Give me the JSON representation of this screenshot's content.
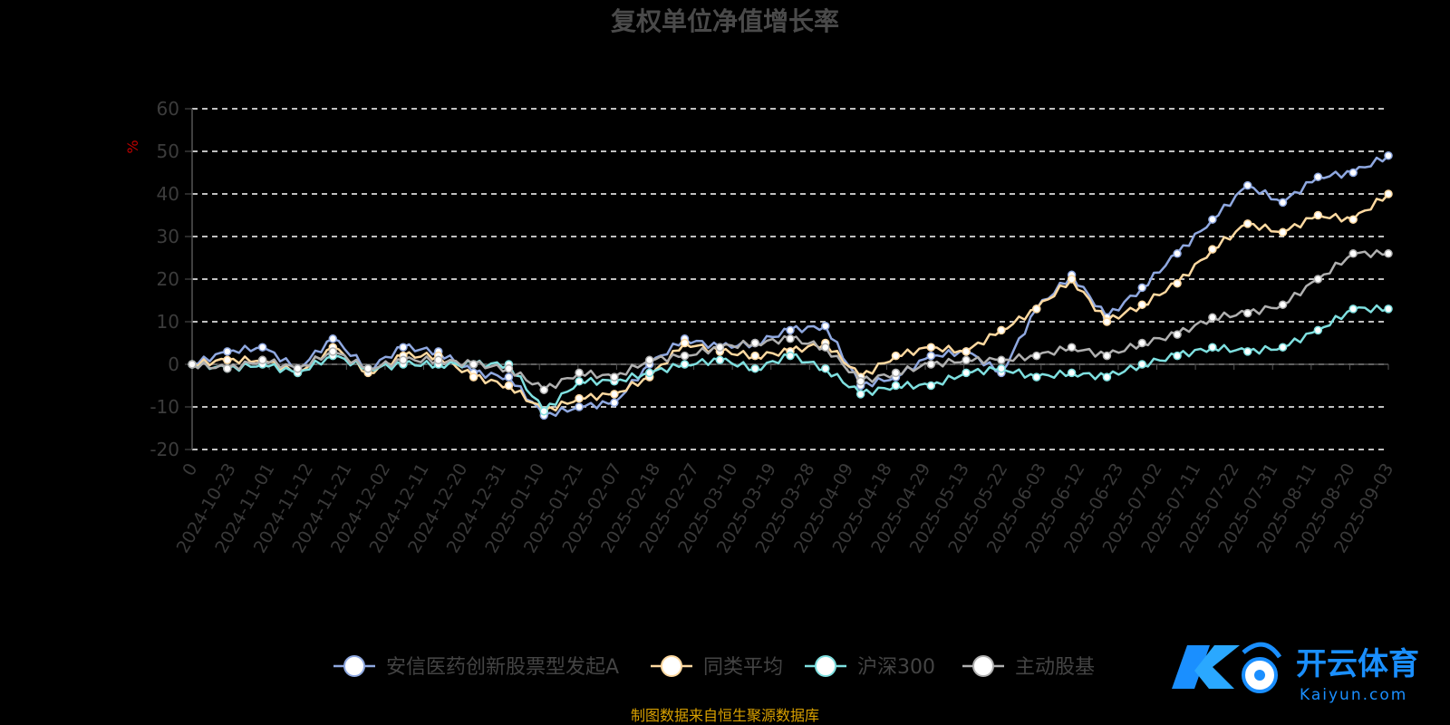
{
  "chart_data": {
    "type": "line",
    "title": "复权单位净值增长率",
    "ylabel": "%",
    "ylim": [
      -20,
      60
    ],
    "yticks": [
      -20,
      -10,
      0,
      10,
      20,
      30,
      40,
      50,
      60
    ],
    "grid": true,
    "legend_position": "bottom",
    "x_tick_labels": [
      "0",
      "2024-10-23",
      "2024-11-01",
      "2024-11-12",
      "2024-11-21",
      "2024-12-02",
      "2024-12-11",
      "2024-12-20",
      "2024-12-31",
      "2025-01-10",
      "2025-01-21",
      "2025-02-07",
      "2025-02-18",
      "2025-02-27",
      "2025-03-10",
      "2025-03-19",
      "2025-03-28",
      "2025-04-09",
      "2025-04-18",
      "2025-04-29",
      "2025-05-13",
      "2025-05-22",
      "2025-06-03",
      "2025-06-12",
      "2025-06-23",
      "2025-07-02",
      "2025-07-11",
      "2025-07-22",
      "2025-07-31",
      "2025-08-11",
      "2025-08-20",
      "2025-09-03"
    ],
    "series": [
      {
        "name": "安信医药创新股票型发起A",
        "color": "#8fa8e0",
        "values": [
          0,
          3,
          4,
          -1,
          6,
          -1,
          4,
          3,
          -2,
          -3,
          -12,
          -10,
          -9,
          0,
          6,
          4,
          5,
          8,
          9,
          -5,
          -3,
          2,
          3,
          -2,
          13,
          21,
          11,
          18,
          26,
          34,
          42,
          38,
          44,
          45,
          49
        ]
      },
      {
        "name": "同类平均",
        "color": "#ffd9a0",
        "values": [
          0,
          1,
          1,
          -2,
          4,
          -2,
          2,
          2,
          -3,
          -5,
          -11,
          -8,
          -7,
          -3,
          5,
          3,
          2,
          3,
          5,
          -3,
          2,
          4,
          3,
          8,
          13,
          20,
          10,
          14,
          19,
          27,
          33,
          31,
          35,
          34,
          40
        ]
      },
      {
        "name": "沪深300",
        "color": "#7fe0e0",
        "values": [
          0,
          -1,
          0,
          -2,
          2,
          -1,
          0,
          0,
          0,
          0,
          -11,
          -4,
          -4,
          -2,
          0,
          1,
          -1,
          2,
          -1,
          -7,
          -5,
          -5,
          -2,
          -1,
          -3,
          -2,
          -3,
          0,
          2,
          4,
          3,
          4,
          8,
          13,
          13
        ]
      },
      {
        "name": "主动股基",
        "color": "#b0b0b0",
        "values": [
          0,
          -1,
          1,
          -1,
          3,
          -1,
          1,
          1,
          0,
          -1,
          -6,
          -2,
          -3,
          1,
          2,
          4,
          5,
          6,
          4,
          -4,
          -2,
          0,
          1,
          1,
          2,
          4,
          2,
          5,
          7,
          11,
          12,
          14,
          20,
          26,
          26
        ]
      }
    ],
    "markers": {
      "安信医药创新股票型发起A": [
        0,
        5,
        10,
        15,
        21,
        26,
        31,
        36,
        41,
        46,
        51,
        56,
        62,
        67,
        72,
        77,
        82,
        87,
        92,
        97,
        102,
        107,
        112,
        117,
        122,
        127,
        132,
        137,
        142,
        147,
        152,
        157,
        162,
        167,
        171,
        172,
        176,
        181,
        186,
        191,
        196,
        201,
        206,
        211,
        216,
        221,
        226,
        231,
        236,
        241,
        246,
        251,
        256,
        261,
        266,
        271,
        276,
        281,
        286
      ],
      "note": ""
    }
  },
  "legend": {
    "items": [
      {
        "label": "安信医药创新股票型发起A"
      },
      {
        "label": "同类平均"
      },
      {
        "label": "沪深300"
      },
      {
        "label": "主动股基"
      }
    ]
  },
  "footer": {
    "source": "制图数据来自恒生聚源数据库"
  },
  "watermark": {
    "cn": "开云体育",
    "en": "Kaiyun.com"
  }
}
